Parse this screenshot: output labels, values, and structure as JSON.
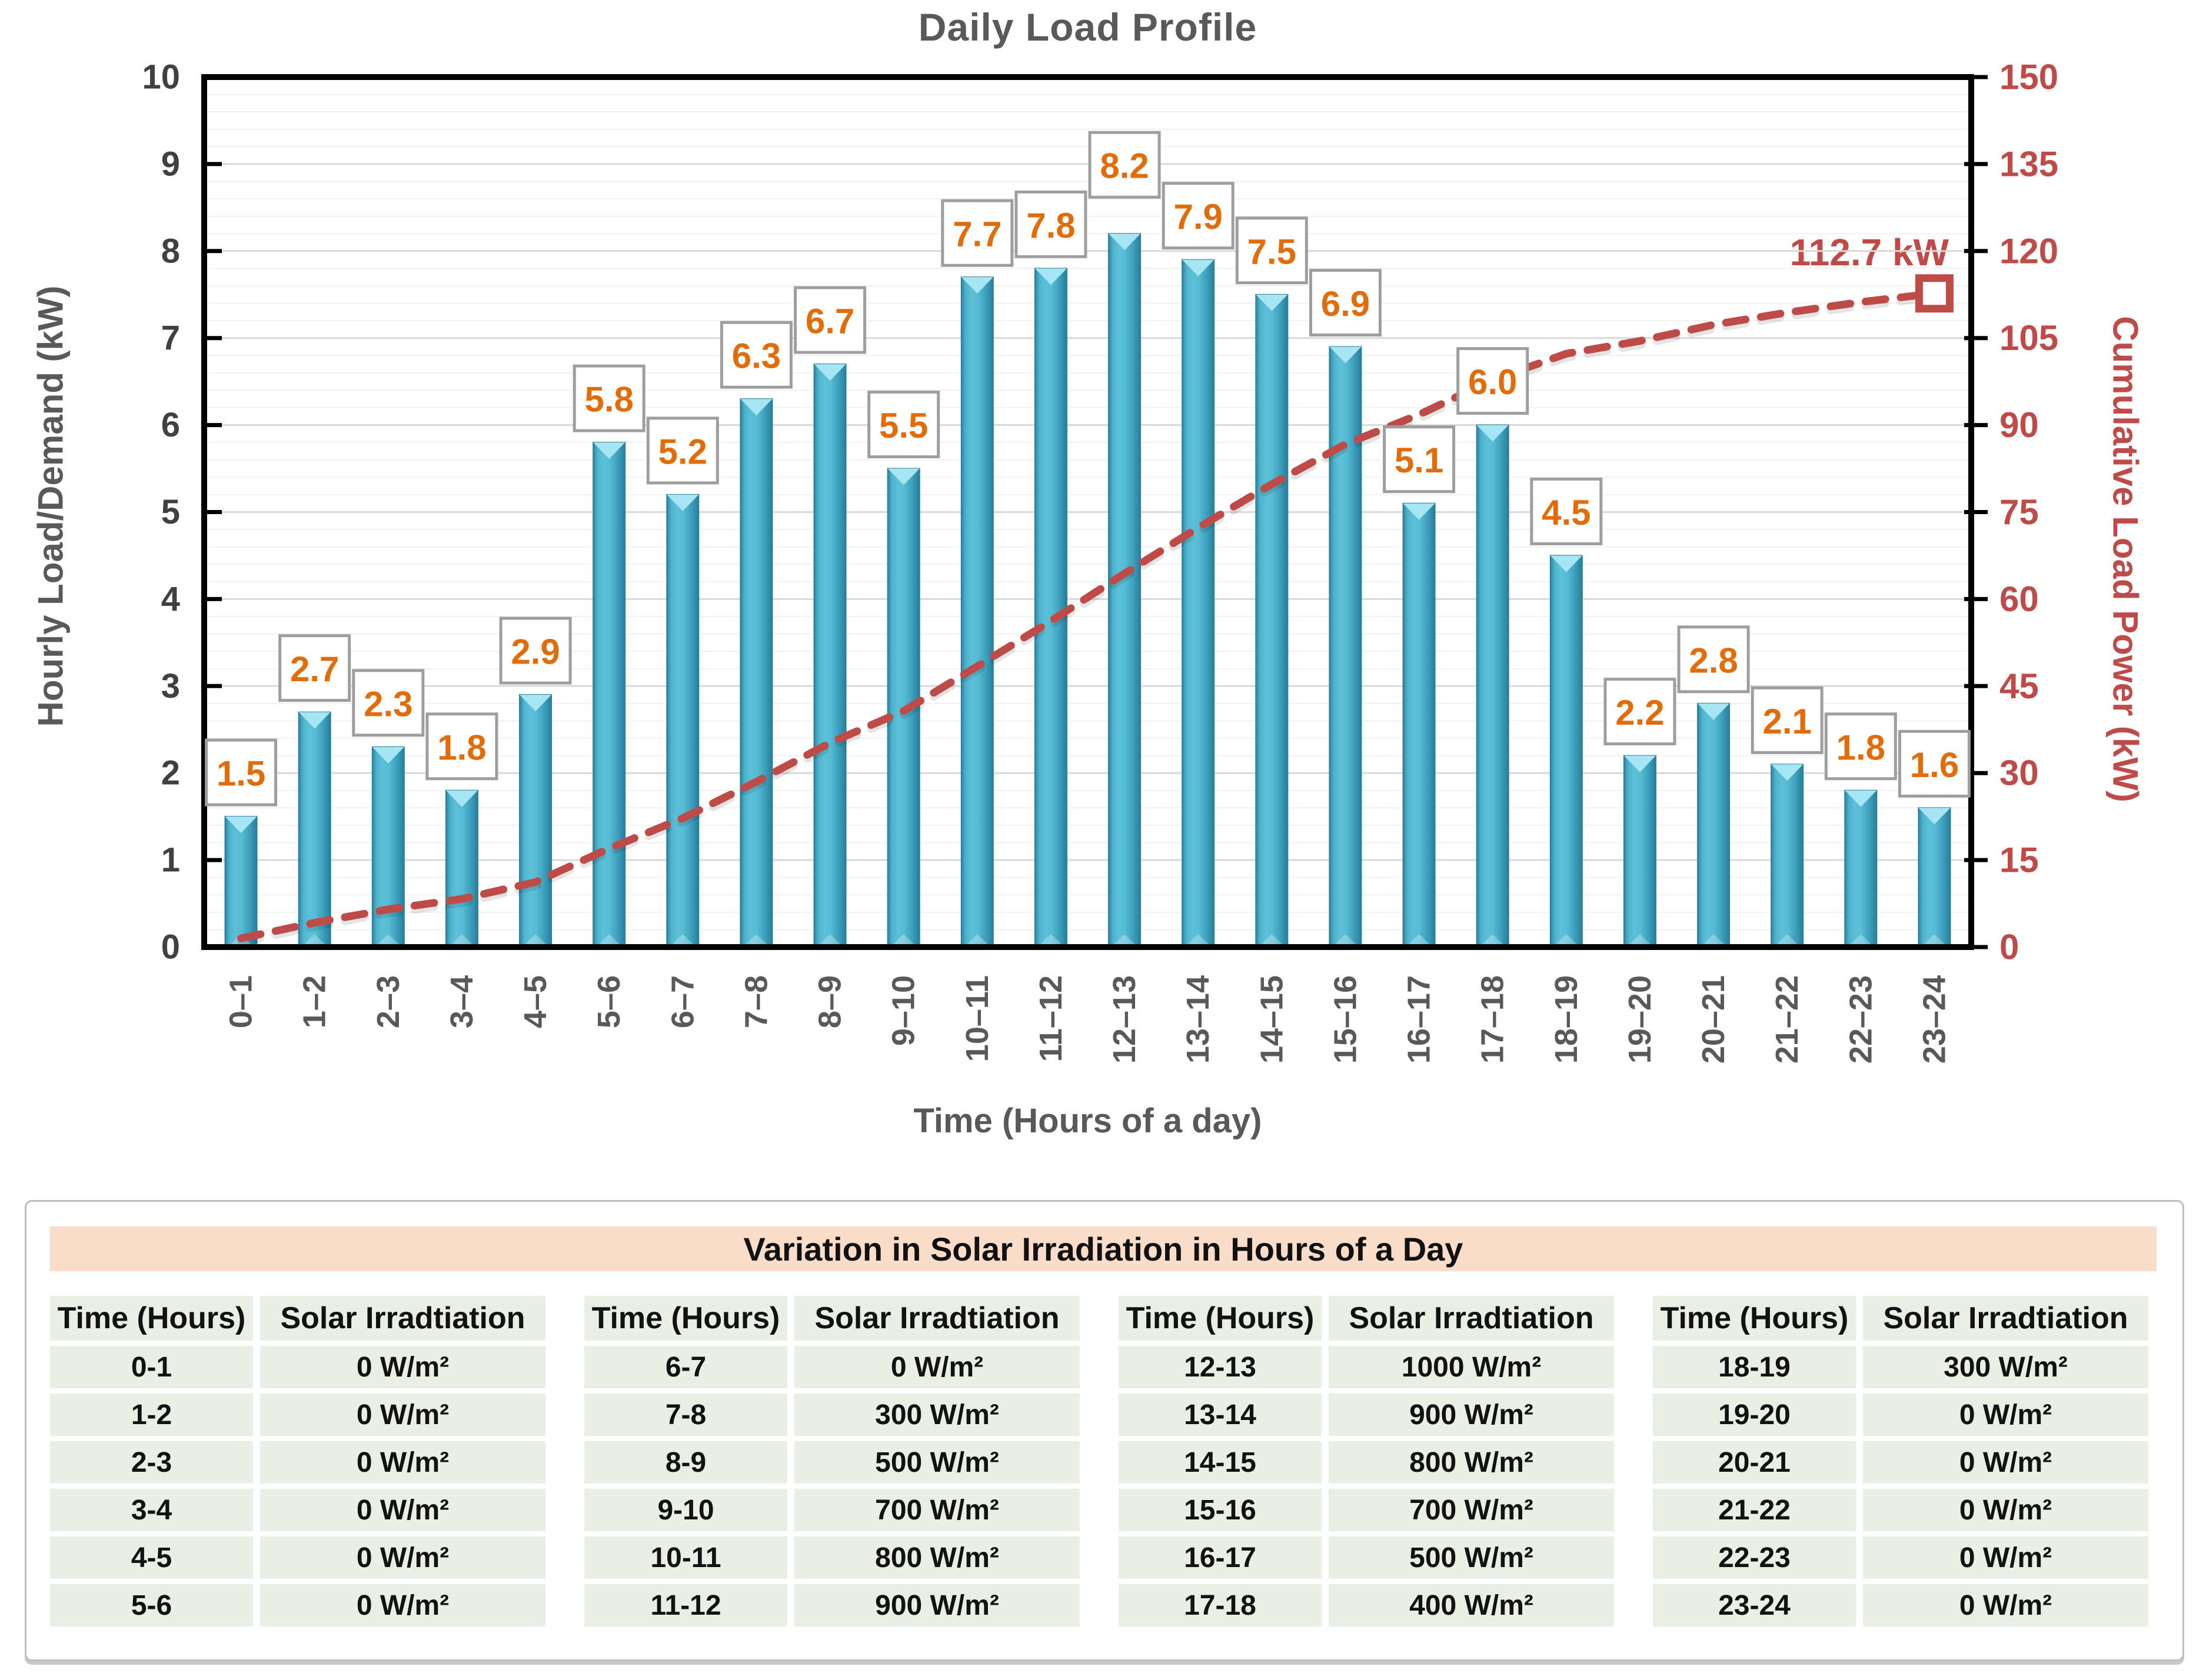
{
  "chart": {
    "title": "Daily Load Profile",
    "y_left_title": "Hourly Load/Demand (kW)",
    "y_right_title": "Cumulative Load Power (kW)",
    "x_axis_title": "Time (Hours of a day)",
    "annotation": "112.7 kW"
  },
  "chart_data": {
    "type": "bar",
    "title": "Daily Load Profile",
    "xlabel": "Time (Hours of a day)",
    "ylabel_left": "Hourly Load/Demand (kW)",
    "ylabel_right": "Cumulative Load Power (kW)",
    "ylim_left": [
      0,
      10
    ],
    "ylim_right": [
      0,
      150
    ],
    "y_left_ticks": [
      0,
      1,
      2,
      3,
      4,
      5,
      6,
      7,
      8,
      9,
      10
    ],
    "y_right_ticks": [
      0,
      15,
      30,
      45,
      60,
      75,
      90,
      105,
      120,
      135,
      150
    ],
    "grid": "major-and-minor-horizontal",
    "legend_position": "none",
    "categories": [
      "0–1",
      "1–2",
      "2–3",
      "3–4",
      "4–5",
      "5–6",
      "6–7",
      "7–8",
      "8–9",
      "9–10",
      "10–11",
      "11–12",
      "12–13",
      "13–14",
      "14–15",
      "15–16",
      "16–17",
      "17–18",
      "18–19",
      "19–20",
      "20–21",
      "21–22",
      "22–23",
      "23–24"
    ],
    "series": [
      {
        "name": "Hourly Load/Demand (kW)",
        "type": "bar",
        "axis": "left",
        "values": [
          1.5,
          2.7,
          2.3,
          1.8,
          2.9,
          5.8,
          5.2,
          6.3,
          6.7,
          5.5,
          7.7,
          7.8,
          8.2,
          7.9,
          7.5,
          6.9,
          5.1,
          6.0,
          4.5,
          2.2,
          2.8,
          2.1,
          1.8,
          1.6
        ]
      },
      {
        "name": "Cumulative Load Power (kW)",
        "type": "dashed-line",
        "axis": "right",
        "values": [
          1.5,
          4.2,
          6.5,
          8.3,
          11.2,
          17.0,
          22.2,
          28.5,
          35.2,
          40.7,
          48.4,
          56.2,
          64.4,
          72.3,
          79.8,
          86.7,
          91.8,
          97.8,
          102.3,
          104.5,
          107.3,
          109.4,
          111.2,
          112.7
        ],
        "end_label": "112.7 kW"
      }
    ]
  },
  "table": {
    "title": "Variation in Solar Irradiation in Hours of a Day",
    "col_headers": [
      "Time (Hours)",
      "Solar Irradtiation"
    ],
    "groups": [
      {
        "rows": [
          [
            "0-1",
            "0 W/m²"
          ],
          [
            "1-2",
            "0 W/m²"
          ],
          [
            "2-3",
            "0 W/m²"
          ],
          [
            "3-4",
            "0 W/m²"
          ],
          [
            "4-5",
            "0 W/m²"
          ],
          [
            "5-6",
            "0 W/m²"
          ]
        ]
      },
      {
        "rows": [
          [
            "6-7",
            "0 W/m²"
          ],
          [
            "7-8",
            "300 W/m²"
          ],
          [
            "8-9",
            "500 W/m²"
          ],
          [
            "9-10",
            "700 W/m²"
          ],
          [
            "10-11",
            "800 W/m²"
          ],
          [
            "11-12",
            "900 W/m²"
          ]
        ]
      },
      {
        "rows": [
          [
            "12-13",
            "1000 W/m²"
          ],
          [
            "13-14",
            "900 W/m²"
          ],
          [
            "14-15",
            "800 W/m²"
          ],
          [
            "15-16",
            "700 W/m²"
          ],
          [
            "16-17",
            "500 W/m²"
          ],
          [
            "17-18",
            "400 W/m²"
          ]
        ]
      },
      {
        "rows": [
          [
            "18-19",
            "300 W/m²"
          ],
          [
            "19-20",
            "0 W/m²"
          ],
          [
            "20-21",
            "0 W/m²"
          ],
          [
            "21-22",
            "0 W/m²"
          ],
          [
            "22-23",
            "0 W/m²"
          ],
          [
            "23-24",
            "0 W/m²"
          ]
        ]
      }
    ]
  },
  "colors": {
    "bar_base": "#3DA5C2",
    "bar_light": "#5CC0D8",
    "bar_dark": "#2B7F99",
    "bar_cap": "#A6E6F4",
    "data_label_text": "#E36C0A",
    "data_label_border": "#9E9E9E",
    "cumulative_line": "#BE4B48",
    "axis_text_gray": "#404040",
    "title_gray": "#595959",
    "grid_major": "#D9D9D9",
    "grid_minor": "#F1F1F1",
    "table_title_bg": "#FADDC9",
    "table_cell_bg": "#E9EFE4",
    "panel_border": "#BFBFBF"
  }
}
